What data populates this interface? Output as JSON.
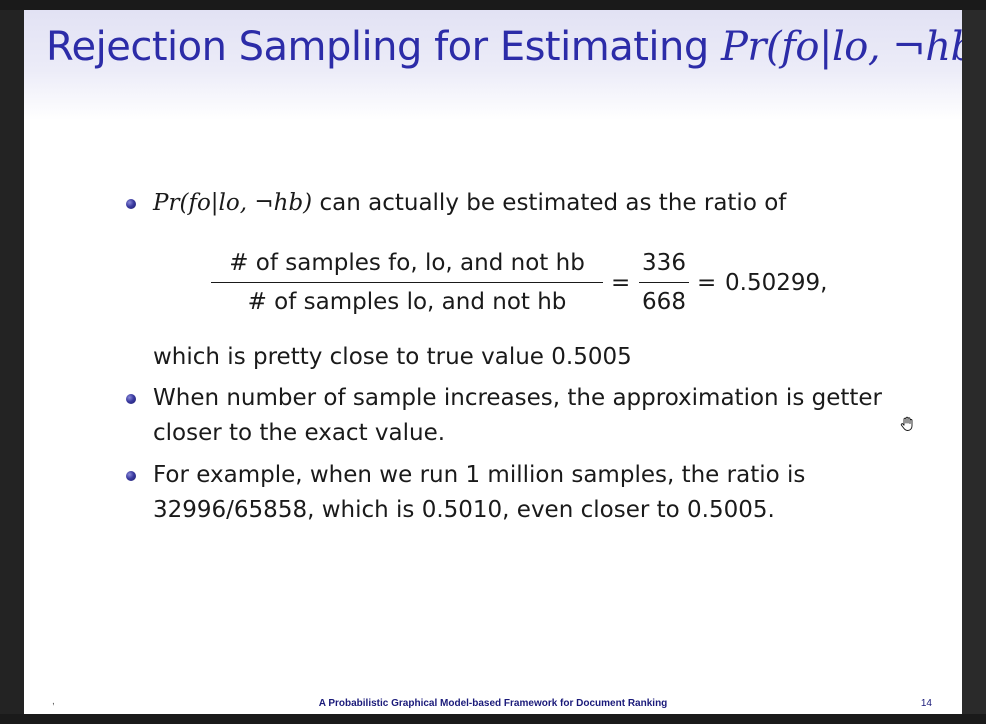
{
  "slide": {
    "title_prefix": "Rejection Sampling for Estimating ",
    "title_math": "Pr(fo|lo, ¬hb)",
    "bullets": [
      {
        "math": "Pr(fo|lo, ¬hb)",
        "text": " can actually be estimated as the ratio of"
      }
    ],
    "formula": {
      "numerator_label": "# of samples fo, lo, and not hb",
      "denominator_label": "# of samples lo, and not hb",
      "equals1": "=",
      "numerator_value": "336",
      "denominator_value": "668",
      "equals2": "=",
      "result": "0.50299,"
    },
    "continuation": "which is pretty close to true value 0.5005",
    "bullet2": {
      "line1": "When number of sample increases, the approximation is getter",
      "line2": "closer to the exact value."
    },
    "bullet3": {
      "line1": "For example, when we run 1 million samples, the ratio is",
      "line2": "32996/65858, which is 0.5010, even closer to 0.5005."
    }
  },
  "footer": {
    "dot": ",",
    "title": "A Probabilistic Graphical Model-based Framework for Document Ranking",
    "page_number": "14"
  },
  "icons": {
    "cursor": "hand-cursor-icon"
  }
}
